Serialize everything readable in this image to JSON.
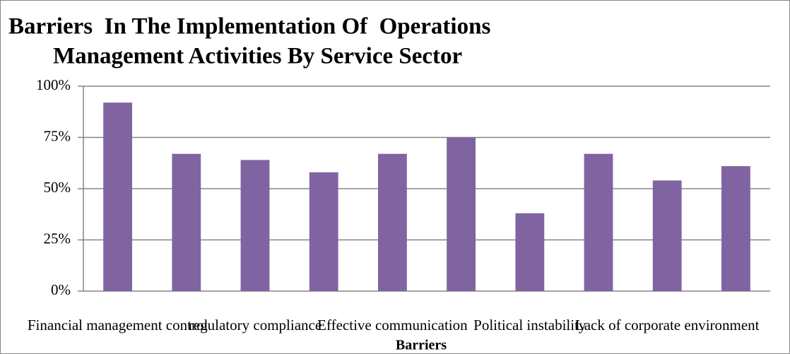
{
  "chart_data": {
    "type": "bar",
    "title": [
      "Barriers  In The Implementation Of  Operations",
      "Management Activities By Service Sector"
    ],
    "x_label": "Barriers",
    "categories": [
      "Financial management control",
      null,
      "regulatory compliance",
      null,
      "Effective communication",
      null,
      "Political instability",
      null,
      "Lack of corporate environment",
      null
    ],
    "values": [
      92,
      67,
      64,
      58,
      67,
      75,
      38,
      67,
      54,
      61
    ],
    "color": "#8064a2",
    "ylim": [
      0,
      100
    ],
    "yticks": [
      {
        "value": 0,
        "label": "0%"
      },
      {
        "value": 25,
        "label": "25%"
      },
      {
        "value": 50,
        "label": "50%"
      },
      {
        "value": 75,
        "label": "75%"
      },
      {
        "value": 100,
        "label": "100%"
      }
    ],
    "grid": true
  }
}
